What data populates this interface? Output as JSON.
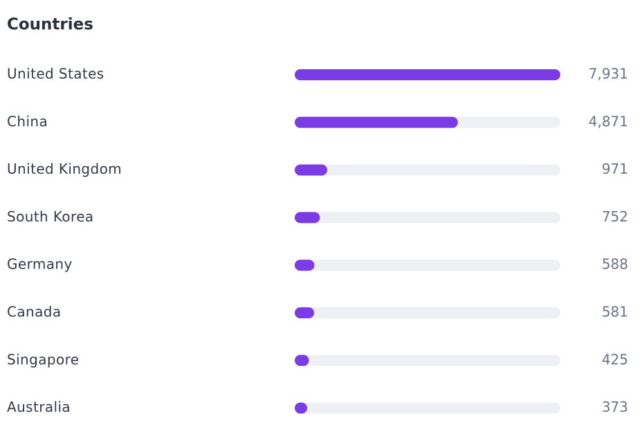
{
  "chart_data": {
    "type": "bar",
    "title": "Countries",
    "categories": [
      "United States",
      "China",
      "United Kingdom",
      "South Korea",
      "Germany",
      "Canada",
      "Singapore",
      "Australia"
    ],
    "values": [
      7931,
      4871,
      971,
      752,
      588,
      581,
      425,
      373
    ],
    "value_labels": [
      "7,931",
      "4,871",
      "971",
      "752",
      "588",
      "581",
      "425",
      "373"
    ],
    "color": "#7b3ce6",
    "track_color": "#eef0f4",
    "xlim": [
      0,
      7931
    ]
  }
}
